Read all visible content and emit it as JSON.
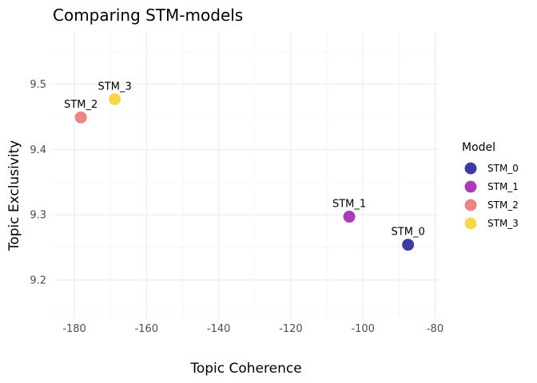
{
  "chart_data": {
    "type": "scatter",
    "title": "Comparing STM-models",
    "xlabel": "Topic Coherence",
    "ylabel": "Topic Exclusivity",
    "xlim": [
      -186,
      -79
    ],
    "ylim": [
      9.14,
      9.58
    ],
    "x_ticks": [
      -180,
      -160,
      -140,
      -120,
      -100,
      -80
    ],
    "y_ticks": [
      9.2,
      9.3,
      9.4,
      9.5
    ],
    "x_tick_labels": [
      "-180",
      "-160",
      "-140",
      "-120",
      "-100",
      "-80"
    ],
    "y_tick_labels": [
      "9.2",
      "9.3",
      "9.4",
      "9.5"
    ],
    "grid": true,
    "legend_title": "Model",
    "legend_position": "right",
    "points": [
      {
        "label": "STM_0",
        "x": -87.5,
        "y": 9.254,
        "color": "#2d2a95"
      },
      {
        "label": "STM_1",
        "x": -103.8,
        "y": 9.297,
        "color": "#9f2db1"
      },
      {
        "label": "STM_2",
        "x": -178.2,
        "y": 9.449,
        "color": "#e77b79"
      },
      {
        "label": "STM_3",
        "x": -168.8,
        "y": 9.477,
        "color": "#f8d340"
      }
    ]
  }
}
